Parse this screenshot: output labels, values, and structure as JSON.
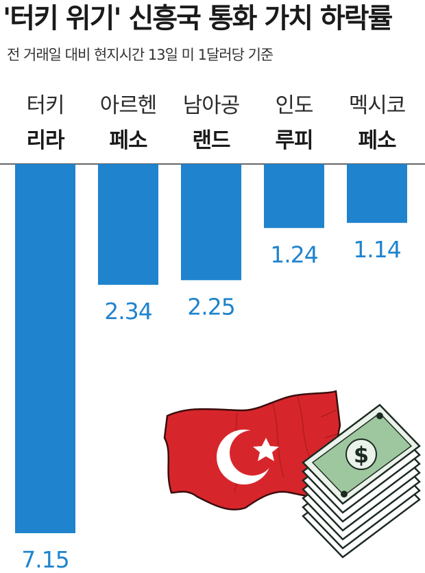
{
  "title": "'터키 위기' 신흥국 통화 가치 하락률",
  "subtitle": "전 거래일 대비 현지시간 13일 미 1달러당 기준",
  "colors": {
    "bar": "#1f83cd",
    "value_text": "#1f83cd",
    "axis": "#333333"
  },
  "chart_data": {
    "type": "bar",
    "orientation": "downward",
    "title": "'터키 위기' 신흥국 통화 가치 하락률",
    "subtitle": "전 거래일 대비 현지시간 13일 미 1달러당 기준",
    "categories": [
      {
        "line1": "터키",
        "line2": "리라"
      },
      {
        "line1": "아르헨",
        "line2": "페소"
      },
      {
        "line1": "남아공",
        "line2": "랜드"
      },
      {
        "line1": "인도",
        "line2": "루피"
      },
      {
        "line1": "멕시코",
        "line2": "페소"
      }
    ],
    "values": [
      7.15,
      2.34,
      2.25,
      1.24,
      1.14
    ],
    "value_labels": [
      "7.15",
      "2.34",
      "2.25",
      "1.24",
      "1.14"
    ],
    "ylim": [
      0,
      7.15
    ],
    "grid": false,
    "legend": "none"
  },
  "illustration": {
    "flag": "turkish-flag",
    "money": "dollar-bills-stack"
  }
}
